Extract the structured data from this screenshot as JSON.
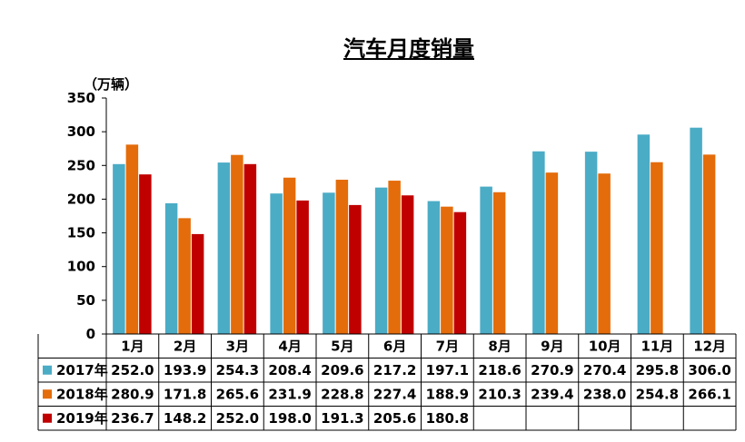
{
  "chart_data": {
    "type": "bar",
    "title": "汽车月度销量",
    "unit": "（万辆）",
    "categories": [
      "1月",
      "2月",
      "3月",
      "4月",
      "5月",
      "6月",
      "7月",
      "8月",
      "9月",
      "10月",
      "11月",
      "12月"
    ],
    "ylim": [
      0,
      350
    ],
    "yticks": [
      0,
      50,
      100,
      150,
      200,
      250,
      300,
      350
    ],
    "grid": false,
    "legend_placement": "table-rows-below",
    "series": [
      {
        "name": "2017年",
        "color": "#4BACC6",
        "values": [
          252.0,
          193.9,
          254.3,
          208.4,
          209.6,
          217.2,
          197.1,
          218.6,
          270.9,
          270.4,
          295.8,
          306.0
        ],
        "labels": [
          "252.0",
          "193.9",
          "254.3",
          "208.4",
          "209.6",
          "217.2",
          "197.1",
          "218.6",
          "270.9",
          "270.4",
          "295.8",
          "306.0"
        ]
      },
      {
        "name": "2018年",
        "color": "#E46C0A",
        "values": [
          280.9,
          171.8,
          265.6,
          231.9,
          228.8,
          227.4,
          188.9,
          210.3,
          239.4,
          238.0,
          254.8,
          266.1
        ],
        "labels": [
          "280.9",
          "171.8",
          "265.6",
          "231.9",
          "228.8",
          "227.4",
          "188.9",
          "210.3",
          "239.4",
          "238.0",
          "254.8",
          "266.1"
        ]
      },
      {
        "name": "2019年",
        "color": "#C00000",
        "values": [
          236.7,
          148.2,
          252.0,
          198.0,
          191.3,
          205.6,
          180.8,
          null,
          null,
          null,
          null,
          null
        ],
        "labels": [
          "236.7",
          "148.2",
          "252.0",
          "198.0",
          "191.3",
          "205.6",
          "180.8",
          "",
          "",
          "",
          "",
          ""
        ]
      }
    ]
  }
}
